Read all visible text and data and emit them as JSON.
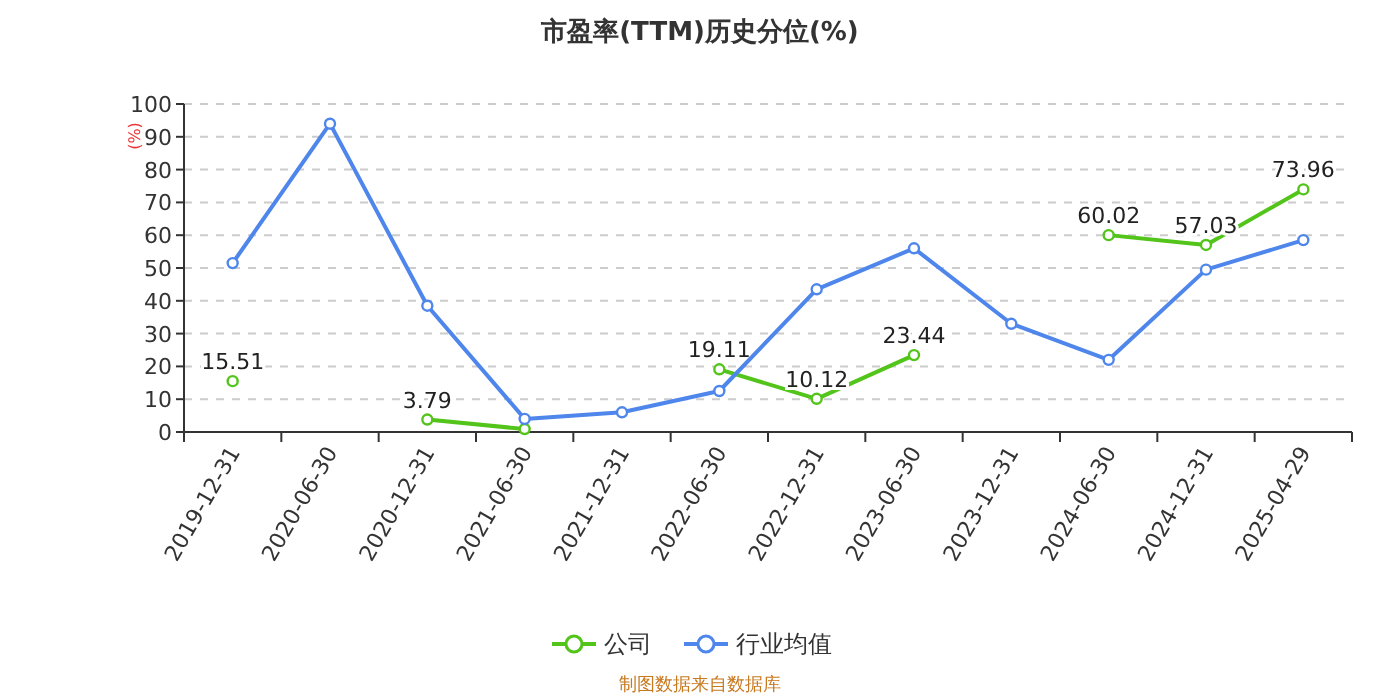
{
  "chart_data": {
    "type": "line",
    "title": "市盈率(TTM)历史分位(%)",
    "ylabel": "(%)",
    "categories": [
      "2019-12-31",
      "2020-06-30",
      "2020-12-31",
      "2021-06-30",
      "2021-12-31",
      "2022-06-30",
      "2022-12-31",
      "2023-06-30",
      "2023-12-31",
      "2024-06-30",
      "2024-12-31",
      "2025-04-29"
    ],
    "series": [
      {
        "name": "公司",
        "color": "#52c41a",
        "values": [
          15.51,
          null,
          3.79,
          0.9,
          null,
          19.11,
          10.12,
          23.44,
          null,
          60.02,
          57.03,
          73.96
        ],
        "value_labels": [
          "15.51",
          null,
          "3.79",
          null,
          null,
          "19.11",
          "10.12",
          "23.44",
          null,
          "60.02",
          "57.03",
          "73.96"
        ]
      },
      {
        "name": "行业均值",
        "color": "#4e86ec",
        "values": [
          51.5,
          94,
          38.5,
          4,
          6,
          12.5,
          43.5,
          56,
          33,
          22,
          49.5,
          58.5
        ]
      }
    ],
    "ylim": [
      0,
      100
    ],
    "yticks": [
      0,
      10,
      20,
      30,
      40,
      50,
      60,
      70,
      80,
      90,
      100
    ],
    "grid": "y",
    "legend": "bottom",
    "marker": "circle",
    "annotations": [
      "制图数据来自数据库"
    ]
  }
}
